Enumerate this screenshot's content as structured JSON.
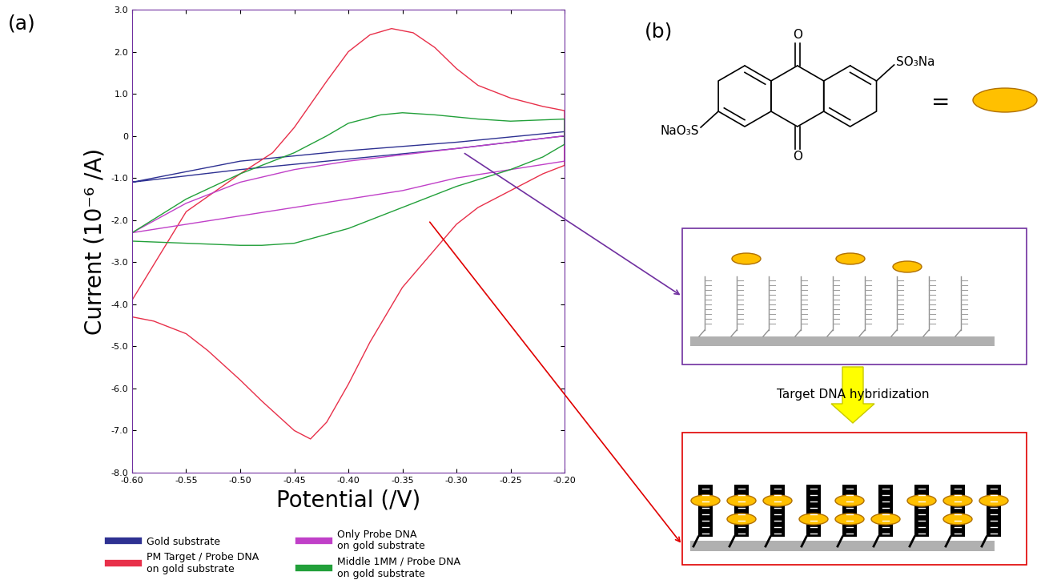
{
  "chart_data": {
    "type": "line",
    "xlabel": "Potential (/V)",
    "ylabel": "Current (10⁻⁶ /A)",
    "xlim": [
      -0.6,
      -0.2
    ],
    "ylim": [
      -8.0,
      3.0
    ],
    "xticks": [
      {
        "value": -0.6,
        "label": "-0.60"
      },
      {
        "value": -0.55,
        "label": "-0.55"
      },
      {
        "value": -0.5,
        "label": "-0.50"
      },
      {
        "value": -0.45,
        "label": "-0.45"
      },
      {
        "value": -0.4,
        "label": "-0.40"
      },
      {
        "value": -0.35,
        "label": "-0.35"
      },
      {
        "value": -0.3,
        "label": "-0.30"
      },
      {
        "value": -0.25,
        "label": "-0.25"
      },
      {
        "value": -0.2,
        "label": "-0.20"
      }
    ],
    "yticks": [
      {
        "value": 3.0,
        "label": "3.0"
      },
      {
        "value": 2.0,
        "label": "2.0"
      },
      {
        "value": 1.0,
        "label": "1.0"
      },
      {
        "value": 0,
        "label": "0"
      },
      {
        "value": -1.0,
        "label": "-1.0"
      },
      {
        "value": -2.0,
        "label": "-2.0"
      },
      {
        "value": -3.0,
        "label": "-3.0"
      },
      {
        "value": -4.0,
        "label": "-4.0"
      },
      {
        "value": -5.0,
        "label": "-5.0"
      },
      {
        "value": -6.0,
        "label": "-6.0"
      },
      {
        "value": -7.0,
        "label": "-7.0"
      },
      {
        "value": -8.0,
        "label": "-8.0"
      }
    ],
    "legend": "lower center",
    "series": [
      {
        "name": "Gold substrate",
        "color": "#2e3192",
        "x": [
          -0.6,
          -0.5,
          -0.4,
          -0.3,
          -0.2,
          -0.2,
          -0.3,
          -0.4,
          -0.5,
          -0.6
        ],
        "values": [
          -1.1,
          -0.6,
          -0.35,
          -0.15,
          0.1,
          0.0,
          -0.3,
          -0.55,
          -0.8,
          -1.1
        ]
      },
      {
        "name": "PM Target / Probe DNA\non gold substrate",
        "color": "#e8304a",
        "x": [
          -0.6,
          -0.55,
          -0.5,
          -0.47,
          -0.45,
          -0.42,
          -0.4,
          -0.38,
          -0.36,
          -0.34,
          -0.32,
          -0.3,
          -0.28,
          -0.25,
          -0.22,
          -0.2,
          -0.2,
          -0.22,
          -0.25,
          -0.28,
          -0.3,
          -0.32,
          -0.35,
          -0.38,
          -0.4,
          -0.42,
          -0.435,
          -0.45,
          -0.48,
          -0.5,
          -0.53,
          -0.55,
          -0.58,
          -0.6,
          -0.6
        ],
        "values": [
          -3.9,
          -1.8,
          -0.9,
          -0.4,
          0.2,
          1.3,
          2.0,
          2.4,
          2.55,
          2.45,
          2.1,
          1.6,
          1.2,
          0.9,
          0.7,
          0.6,
          -0.7,
          -0.9,
          -1.3,
          -1.7,
          -2.1,
          -2.7,
          -3.6,
          -4.9,
          -5.9,
          -6.8,
          -7.2,
          -7.0,
          -6.3,
          -5.8,
          -5.1,
          -4.7,
          -4.4,
          -4.3,
          -3.9
        ]
      },
      {
        "name": "Only Probe DNA\non gold substrate",
        "color": "#c040c8",
        "x": [
          -0.6,
          -0.55,
          -0.5,
          -0.45,
          -0.4,
          -0.35,
          -0.3,
          -0.25,
          -0.2,
          -0.2,
          -0.25,
          -0.3,
          -0.35,
          -0.4,
          -0.45,
          -0.5,
          -0.55,
          -0.6
        ],
        "values": [
          -2.3,
          -1.6,
          -1.1,
          -0.8,
          -0.6,
          -0.45,
          -0.3,
          -0.15,
          0.0,
          -0.6,
          -0.8,
          -1.0,
          -1.3,
          -1.5,
          -1.7,
          -1.9,
          -2.1,
          -2.3
        ]
      },
      {
        "name": "Middle 1MM / Probe DNA\non gold substrate",
        "color": "#22a03a",
        "x": [
          -0.6,
          -0.55,
          -0.5,
          -0.45,
          -0.42,
          -0.4,
          -0.37,
          -0.35,
          -0.32,
          -0.28,
          -0.25,
          -0.2,
          -0.2,
          -0.22,
          -0.25,
          -0.3,
          -0.35,
          -0.4,
          -0.45,
          -0.48,
          -0.5,
          -0.55,
          -0.6
        ],
        "values": [
          -2.3,
          -1.5,
          -0.9,
          -0.4,
          0.0,
          0.3,
          0.5,
          0.55,
          0.5,
          0.4,
          0.35,
          0.4,
          -0.2,
          -0.5,
          -0.8,
          -1.2,
          -1.7,
          -2.2,
          -2.55,
          -2.6,
          -2.6,
          -2.55,
          -2.5
        ]
      }
    ]
  },
  "diagram": {
    "panel_labels": [
      "(a)",
      "(b)"
    ],
    "molecule": {
      "labels": [
        "O",
        "O",
        "SO₃Na",
        "NaO₃S"
      ],
      "equals": "="
    },
    "arrow_label": "Target DNA hybridization"
  }
}
